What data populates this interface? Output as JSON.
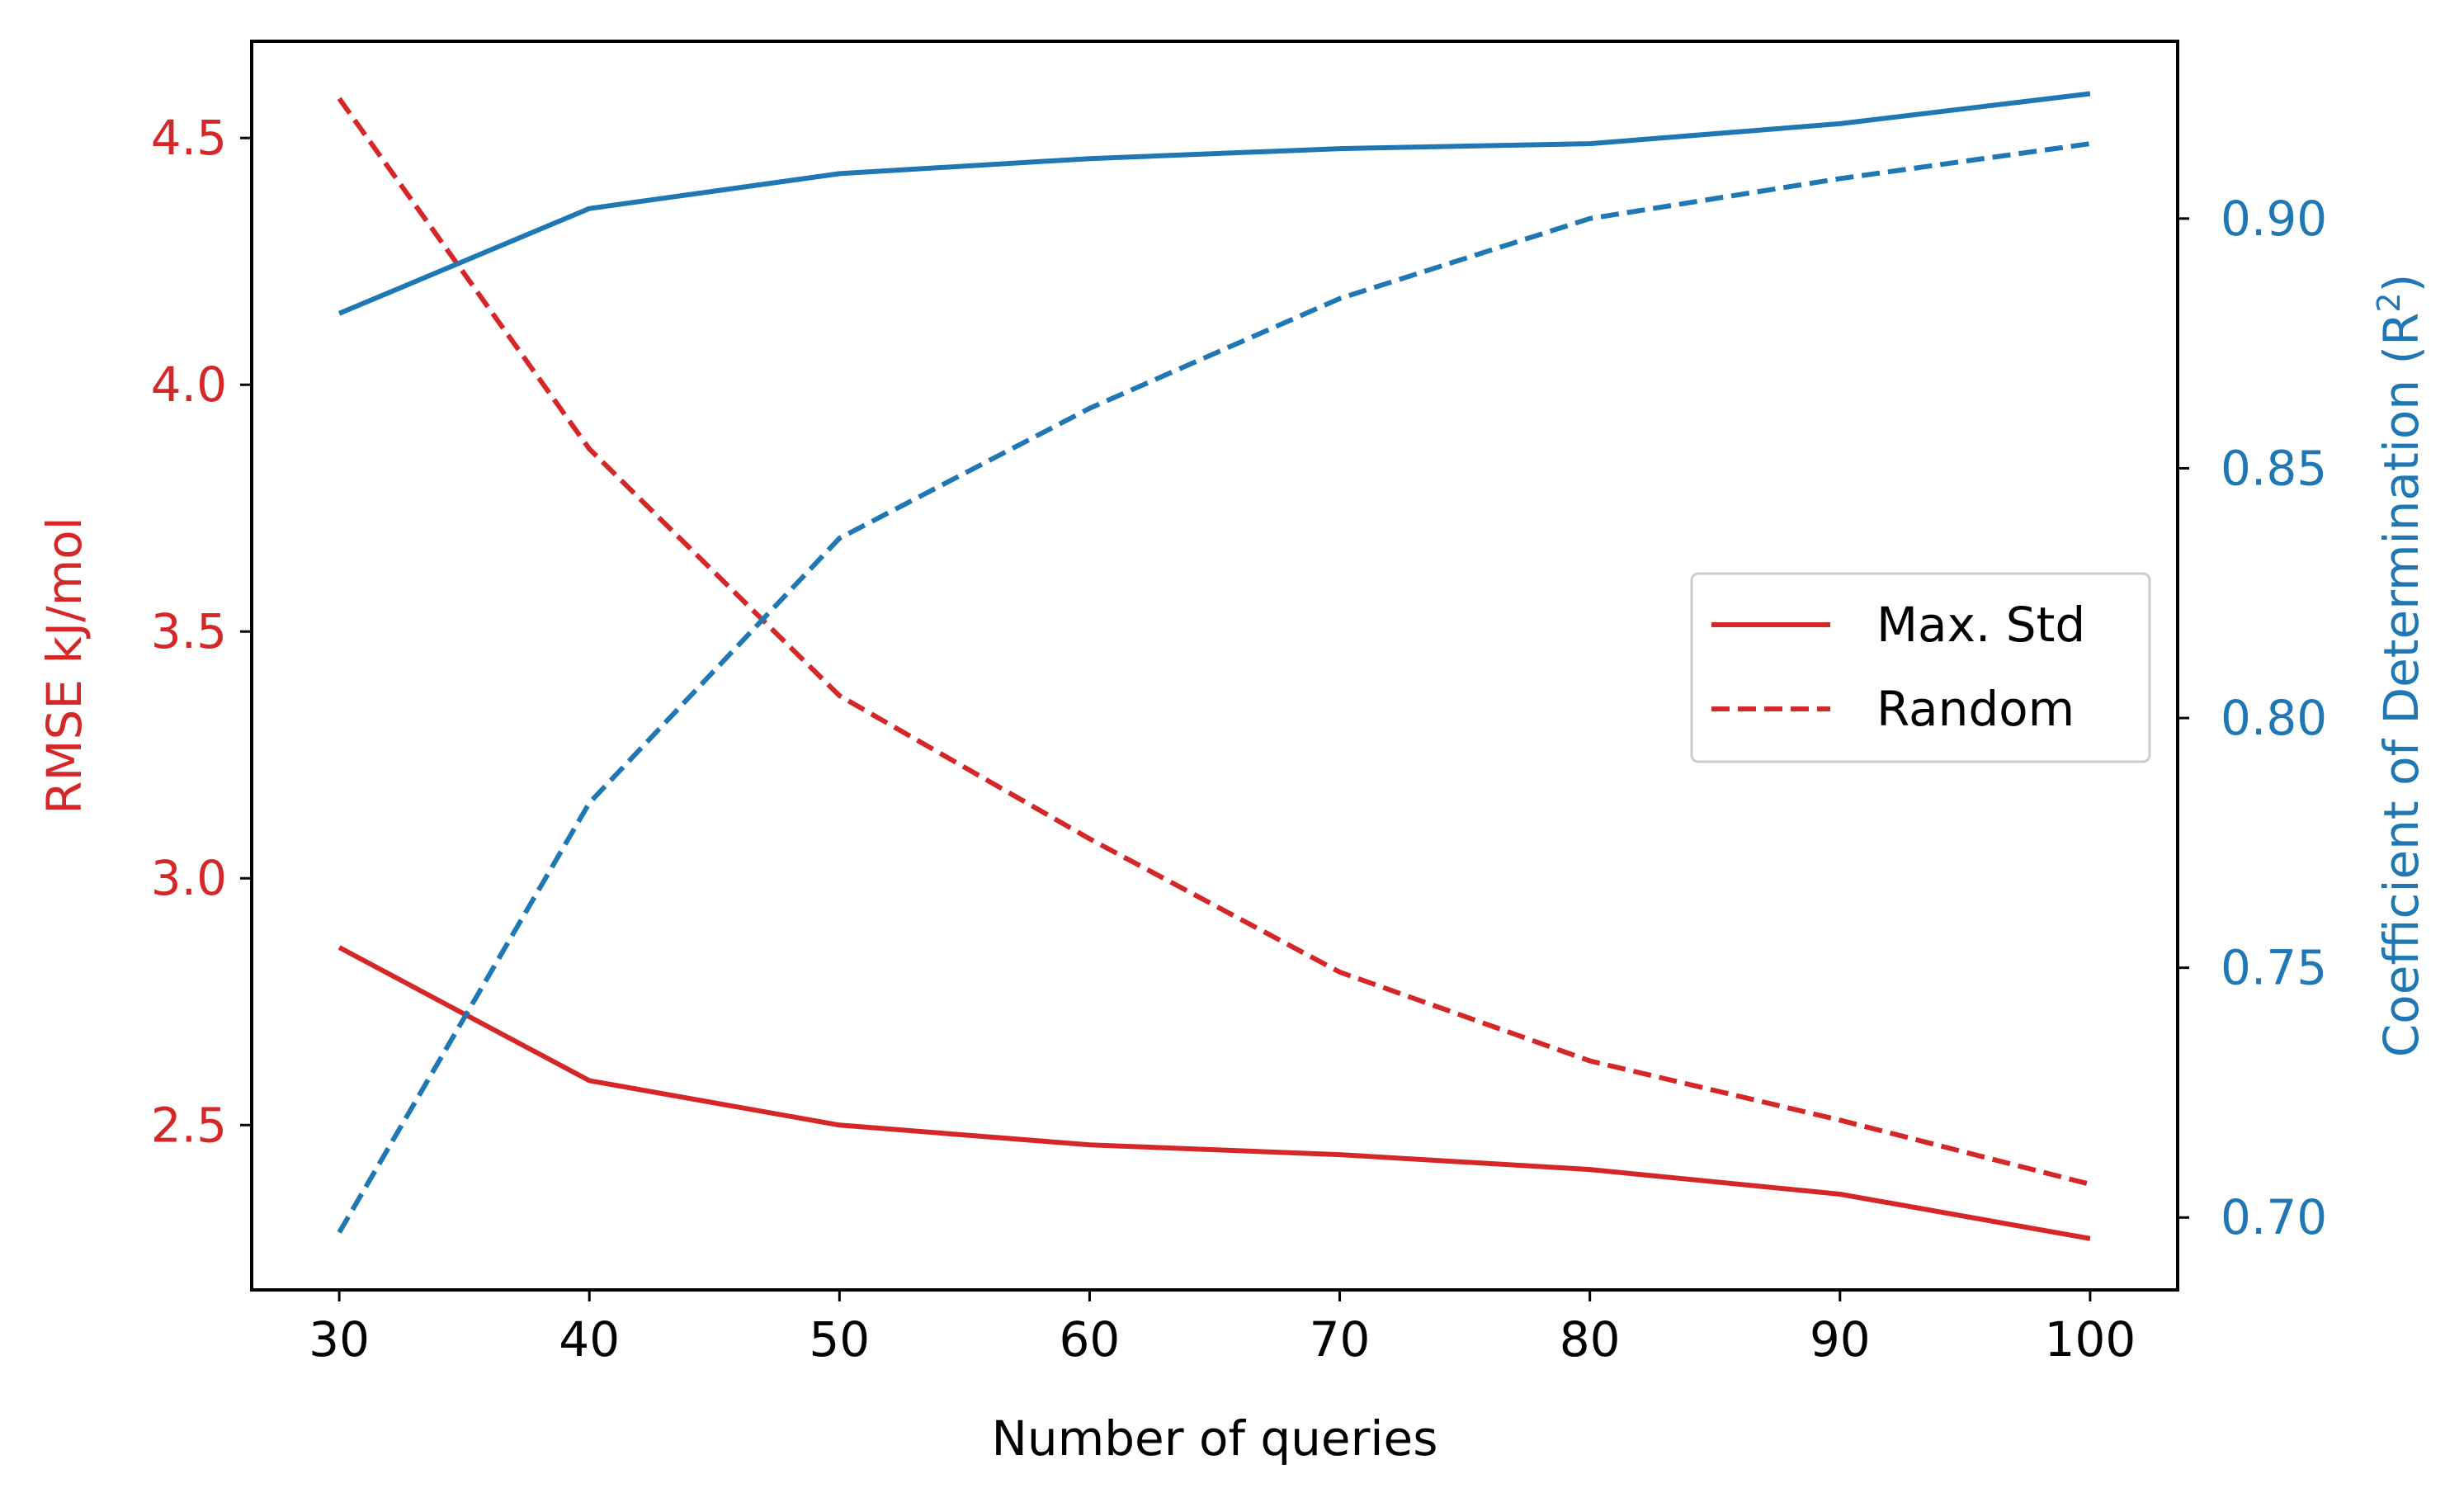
{
  "chart_data": {
    "type": "line",
    "title": "",
    "xlabel": "Number of queries",
    "ylabel_left": "RMSE kJ/mol",
    "ylabel_right_prefix": "Coefficient of Determination (R",
    "ylabel_right_sup": "2",
    "ylabel_right_suffix": ")",
    "x": [
      30,
      40,
      50,
      60,
      70,
      80,
      90,
      100
    ],
    "xlim": [
      26.5,
      103.5
    ],
    "ylim_left": [
      2.166,
      4.696
    ],
    "ylim_right": [
      0.6855,
      0.9355
    ],
    "xticks": [
      30,
      40,
      50,
      60,
      70,
      80,
      90,
      100
    ],
    "yticks_left": [
      2.5,
      3.0,
      3.5,
      4.0,
      4.5
    ],
    "yticks_right": [
      0.7,
      0.75,
      0.8,
      0.85,
      0.9
    ],
    "grid": false,
    "legend_position": "center-right",
    "colors": {
      "rmse": "#d62728",
      "r2": "#1f77b4",
      "axis": "#000000"
    },
    "legend": [
      {
        "label": "Max. Std",
        "style": "solid",
        "color": "#d62728"
      },
      {
        "label": "Random",
        "style": "dashed",
        "color": "#d62728"
      }
    ],
    "series": [
      {
        "axis": "left",
        "style": "solid",
        "color": "#d62728",
        "values": [
          2.86,
          2.59,
          2.5,
          2.46,
          2.44,
          2.41,
          2.36,
          2.27
        ]
      },
      {
        "axis": "left",
        "style": "dashed",
        "color": "#d62728",
        "values": [
          4.58,
          3.87,
          3.37,
          3.08,
          2.81,
          2.63,
          2.51,
          2.38
        ]
      },
      {
        "axis": "right",
        "style": "solid",
        "color": "#1f77b4",
        "values": [
          0.881,
          0.902,
          0.909,
          0.912,
          0.914,
          0.915,
          0.919,
          0.925
        ]
      },
      {
        "axis": "right",
        "style": "dashed",
        "color": "#1f77b4",
        "values": [
          0.697,
          0.783,
          0.836,
          0.862,
          0.884,
          0.9,
          0.908,
          0.915
        ]
      }
    ]
  }
}
